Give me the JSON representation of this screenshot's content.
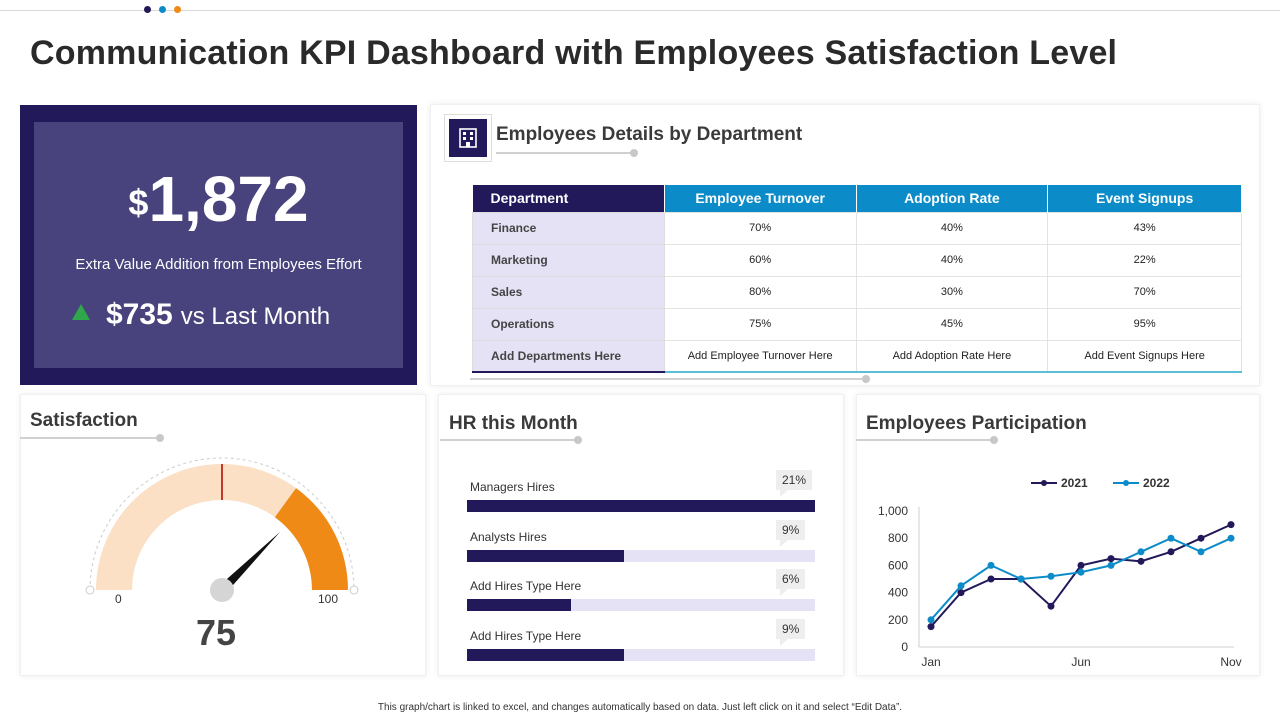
{
  "colors": {
    "navy": "#22195a",
    "blue": "#0c8bc9",
    "orange": "#ef8a17",
    "peach": "#fbe0c6"
  },
  "header": {
    "title": "Communication KPI Dashboard with Employees Satisfaction Level",
    "dots": [
      "#22195a",
      "#0c8bc9",
      "#ef8a17"
    ]
  },
  "kpi": {
    "currency": "$",
    "value": "1,872",
    "description": "Extra Value Addition from Employees Effort",
    "delta": "$735",
    "delta_suffix": "vs Last Month"
  },
  "department": {
    "title": "Employees Details by Department",
    "icon": "building-icon",
    "columns": [
      "Department",
      "Employee Turnover",
      "Adoption Rate",
      "Event Signups"
    ],
    "rows": [
      [
        "Finance",
        "70%",
        "40%",
        "43%"
      ],
      [
        "Marketing",
        "60%",
        "40%",
        "22%"
      ],
      [
        "Sales",
        "80%",
        "30%",
        "70%"
      ],
      [
        "Operations",
        "75%",
        "45%",
        "95%"
      ],
      [
        "Add  Departments Here",
        "Add Employee  Turnover Here",
        "Add Adoption Rate Here",
        "Add Event Signups Here"
      ]
    ]
  },
  "satisfaction": {
    "title": "Satisfaction",
    "min_label": "0",
    "max_label": "100",
    "value_label": "75",
    "value": 75,
    "min": 0,
    "max": 100,
    "target": 50
  },
  "hr": {
    "title": "HR this Month",
    "items": [
      {
        "label": "Managers Hires",
        "pct_label": "21%",
        "fill": 1.0
      },
      {
        "label": "Analysts Hires",
        "pct_label": "9%",
        "fill": 0.45
      },
      {
        "label": "Add Hires Type Here",
        "pct_label": "6%",
        "fill": 0.3
      },
      {
        "label": "Add Hires Type Here",
        "pct_label": "9%",
        "fill": 0.45
      }
    ]
  },
  "participation": {
    "title": "Employees Participation"
  },
  "chart_data": {
    "type": "line",
    "title": "Employees Participation",
    "x": [
      "Jan",
      "Feb",
      "Mar",
      "Apr",
      "May",
      "Jun",
      "Jul",
      "Aug",
      "Sep",
      "Oct",
      "Nov"
    ],
    "x_tick_labels": [
      "Jan",
      "Jun",
      "Nov"
    ],
    "y_tick_labels": [
      "0",
      "200",
      "400",
      "600",
      "800",
      "1,000"
    ],
    "ylim": [
      0,
      1000
    ],
    "legend_position": "top",
    "series": [
      {
        "name": "2021",
        "color": "#22195a",
        "values": [
          150,
          400,
          500,
          500,
          300,
          600,
          650,
          630,
          700,
          800,
          900
        ]
      },
      {
        "name": "2022",
        "color": "#0c8bc9",
        "values": [
          200,
          450,
          600,
          500,
          520,
          550,
          600,
          700,
          800,
          700,
          800
        ]
      }
    ]
  },
  "footer": {
    "note": "This graph/chart is linked to excel, and changes automatically based on data. Just left click on it and select “Edit Data”."
  }
}
